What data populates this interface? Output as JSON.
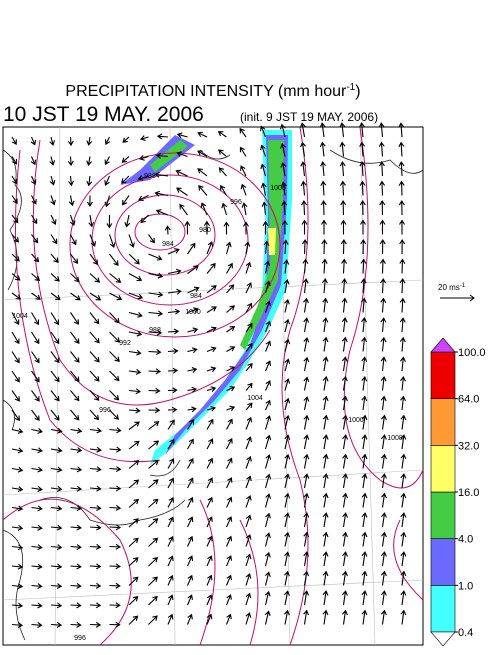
{
  "header": {
    "title": "PRECIPITATION INTENSITY (mm hour",
    "title_exp": "-1",
    "title_end": ")",
    "valid_time": "10 JST 19 MAY. 2006",
    "init_time": "(init. 9 JST 19 MAY. 2006)"
  },
  "wind_reference": {
    "label": "20 ms",
    "label_exp": "-1"
  },
  "isobar_labels": [
    "988",
    "984",
    "980",
    "984",
    "988",
    "992",
    "996",
    "1000",
    "1004",
    "1008",
    "1000",
    "996",
    "1000",
    "1004",
    "996"
  ],
  "colorbar": {
    "levels": [
      0.4,
      {
        "value": 1,
        "label": "1.0"
      },
      {
        "value": 4,
        "label": "4.0"
      },
      {
        "value": 16,
        "label": "16.0"
      },
      {
        "value": 32,
        "label": "32.0"
      },
      {
        "value": 64,
        "label": "64.0"
      },
      {
        "value": 100,
        "label": "100.0"
      }
    ],
    "colors": [
      "#44ffff",
      "#6a6aff",
      "#44cc44",
      "#ffff66",
      "#ff9933",
      "#ee0000"
    ],
    "over_color": "#cc44ff",
    "under_color": "#ffffff"
  }
}
